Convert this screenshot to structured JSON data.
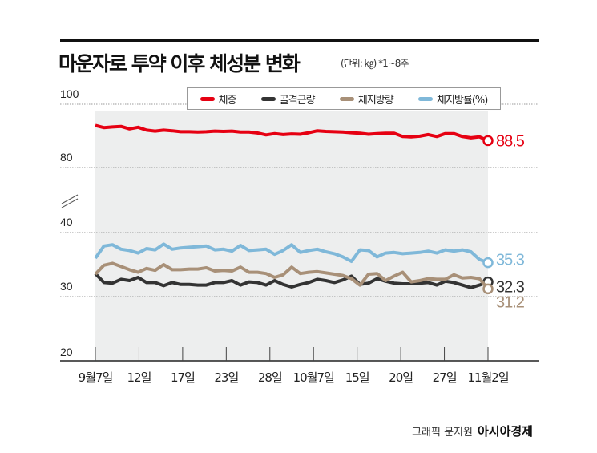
{
  "title": "마운자로 투약 이후 체성분 변화",
  "unit_note": "(단위: ㎏)  *1~8주",
  "footer": {
    "credit": "그래픽 문지원",
    "logo": "아시아경제"
  },
  "chart_data": {
    "type": "line",
    "title": "마운자로 투약 이후 체성분 변화",
    "unit": "kg",
    "axis_break": [
      40,
      80
    ],
    "y_ticks": [
      "100",
      "80",
      "40",
      "30",
      "20"
    ],
    "ylim": [
      20,
      100
    ],
    "grid": true,
    "legend": "top",
    "x_tick_labels": [
      "9월7일",
      "12일",
      "17일",
      "23일",
      "28일",
      "10월7일",
      "15일",
      "20일",
      "27일",
      "11월2일"
    ],
    "series": [
      {
        "name": "체중",
        "color": "#e60012",
        "end_label": "88.5",
        "values": [
          93.3,
          92.6,
          92.8,
          93.0,
          92.2,
          92.7,
          91.8,
          91.5,
          91.8,
          91.6,
          91.3,
          91.3,
          91.2,
          91.3,
          91.5,
          91.4,
          91.5,
          91.2,
          91.2,
          90.9,
          90.3,
          90.7,
          90.4,
          90.6,
          90.5,
          91.0,
          91.6,
          91.4,
          91.3,
          91.2,
          91.0,
          90.8,
          90.5,
          90.7,
          90.8,
          90.8,
          89.8,
          89.7,
          89.9,
          90.4,
          89.8,
          90.7,
          90.7,
          89.8,
          89.4,
          89.7,
          88.5
        ]
      },
      {
        "name": "골격근량",
        "color": "#333333",
        "end_label": "32.3",
        "values": [
          33.6,
          32.2,
          32.1,
          32.7,
          32.5,
          33.0,
          32.2,
          32.2,
          31.7,
          32.2,
          31.9,
          31.9,
          31.8,
          31.8,
          32.2,
          32.2,
          32.5,
          31.8,
          32.3,
          32.2,
          31.8,
          32.5,
          31.9,
          31.5,
          31.9,
          32.2,
          32.7,
          32.5,
          32.2,
          32.6,
          33.2,
          31.9,
          32.1,
          32.8,
          32.4,
          32.1,
          32.0,
          32.0,
          32.1,
          32.2,
          31.8,
          32.4,
          32.2,
          31.8,
          31.4,
          31.8,
          32.3
        ]
      },
      {
        "name": "체지방량",
        "color": "#a89078",
        "end_label": "31.2",
        "values": [
          33.5,
          34.9,
          35.2,
          34.7,
          34.2,
          33.8,
          34.4,
          34.1,
          35.0,
          34.2,
          34.2,
          34.3,
          34.3,
          34.5,
          34.0,
          34.1,
          34.0,
          34.6,
          33.8,
          33.8,
          33.6,
          33.0,
          33.4,
          34.6,
          33.6,
          33.8,
          33.9,
          33.7,
          33.5,
          33.3,
          32.8,
          31.8,
          33.5,
          33.6,
          32.5,
          33.2,
          33.8,
          32.3,
          32.5,
          32.8,
          32.7,
          32.7,
          33.4,
          32.9,
          33.0,
          32.8,
          31.2
        ]
      },
      {
        "name": "체지방률(%)",
        "color": "#7fb8d9",
        "end_label": "35.3",
        "values": [
          36.0,
          37.9,
          38.1,
          37.4,
          37.2,
          36.8,
          37.5,
          37.3,
          38.2,
          37.4,
          37.6,
          37.7,
          37.8,
          37.9,
          37.3,
          37.4,
          37.1,
          38.0,
          37.2,
          37.3,
          37.4,
          36.6,
          37.2,
          38.1,
          36.9,
          37.2,
          37.4,
          37.0,
          36.7,
          36.2,
          35.5,
          37.3,
          37.2,
          36.2,
          36.8,
          36.9,
          36.7,
          36.8,
          36.9,
          37.1,
          36.8,
          37.3,
          37.1,
          37.3,
          37.0,
          35.8,
          35.3
        ]
      }
    ]
  }
}
